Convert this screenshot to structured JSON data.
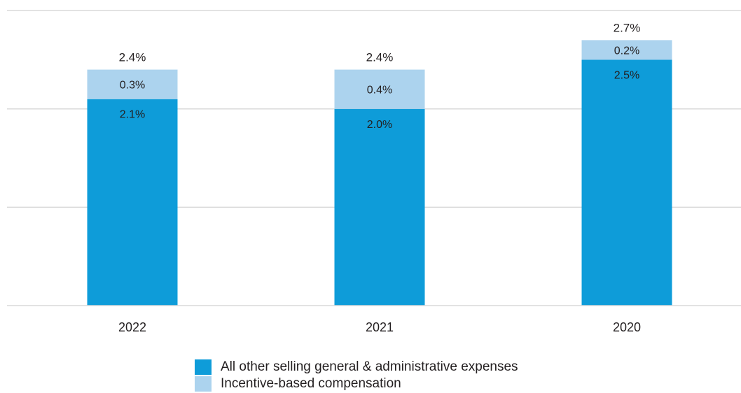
{
  "chart_data": {
    "type": "bar",
    "stacked": true,
    "categories": [
      "2022",
      "2021",
      "2020"
    ],
    "series": [
      {
        "name": "All other selling general & administrative expenses",
        "values": [
          2.1,
          2.0,
          2.5
        ],
        "labels": [
          "2.1%",
          "2.0%",
          "2.5%"
        ],
        "color": "#0e9cd9"
      },
      {
        "name": "Incentive-based compensation",
        "values": [
          0.3,
          0.4,
          0.2
        ],
        "labels": [
          "0.3%",
          "0.4%",
          "0.2%"
        ],
        "color": "#acd3ee"
      }
    ],
    "totals": [
      2.4,
      2.4,
      2.7
    ],
    "total_labels": [
      "2.4%",
      "2.4%",
      "2.7%"
    ],
    "ylim": [
      0,
      3.0
    ],
    "grid": true,
    "legend_position": "bottom",
    "title": "",
    "xlabel": "",
    "ylabel": ""
  }
}
